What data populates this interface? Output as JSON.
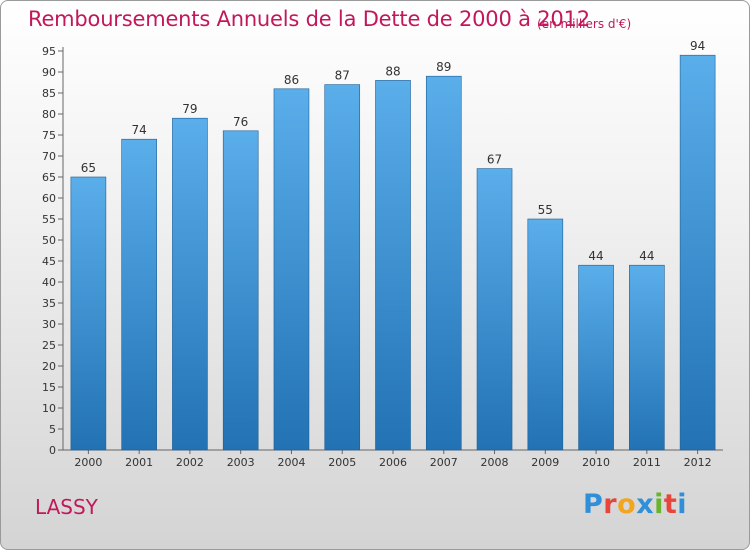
{
  "header": {
    "title": "Remboursements Annuels de la Dette de 2000 à 2012",
    "subtitle": "(en milliers d'€)"
  },
  "footer": {
    "location": "LASSY",
    "logo_letters": [
      "P",
      "r",
      "o",
      "x",
      "i",
      "t",
      "i"
    ],
    "logo_colors": [
      "#2f8fd8",
      "#e8463c",
      "#f2a51f",
      "#2f8fd8",
      "#6ab42d",
      "#e8463c",
      "#2f8fd8"
    ]
  },
  "colors": {
    "bar_top": "#5aaeea",
    "bar_bottom": "#2272b4",
    "accent": "#c2185b"
  },
  "chart_data": {
    "type": "bar",
    "title": "Remboursements Annuels de la Dette de 2000 à 2012",
    "xlabel": "",
    "ylabel": "",
    "categories": [
      "2000",
      "2001",
      "2002",
      "2003",
      "2004",
      "2005",
      "2006",
      "2007",
      "2008",
      "2009",
      "2010",
      "2011",
      "2012"
    ],
    "values": [
      65,
      74,
      79,
      76,
      86,
      87,
      88,
      89,
      67,
      55,
      44,
      44,
      94
    ],
    "ylim": [
      0,
      95
    ],
    "yticks": [
      0,
      5,
      10,
      15,
      20,
      25,
      30,
      35,
      40,
      45,
      50,
      55,
      60,
      65,
      70,
      75,
      80,
      85,
      90,
      95
    ],
    "grid": false,
    "legend": "none"
  }
}
